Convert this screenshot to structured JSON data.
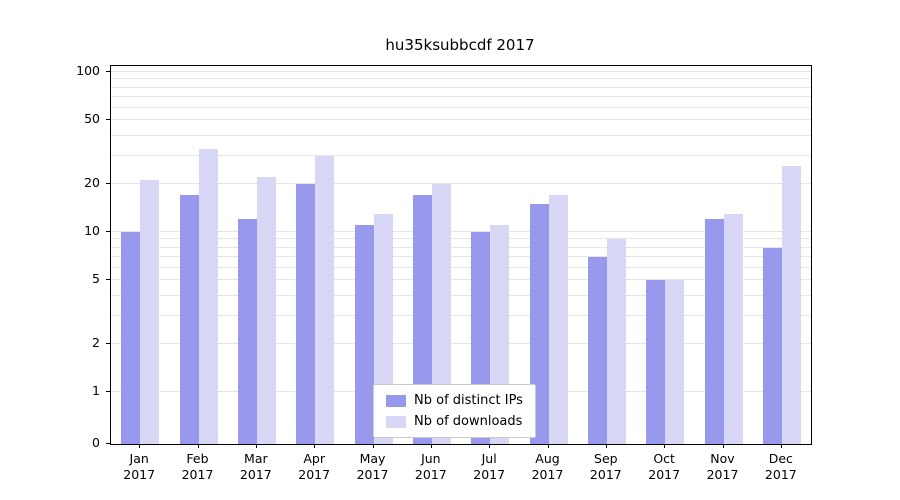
{
  "title": "hu35ksubbcdf 2017",
  "chart_data": {
    "type": "bar",
    "title": "hu35ksubbcdf 2017",
    "categories": [
      "Jan 2017",
      "Feb 2017",
      "Mar 2017",
      "Apr 2017",
      "May 2017",
      "Jun 2017",
      "Jul 2017",
      "Aug 2017",
      "Sep 2017",
      "Oct 2017",
      "Nov 2017",
      "Dec 2017"
    ],
    "series": [
      {
        "name": "Nb of distinct IPs",
        "color": "#9898ec",
        "values": [
          10,
          17,
          12,
          20,
          11,
          17,
          10,
          15,
          7,
          5,
          12,
          8
        ]
      },
      {
        "name": "Nb of downloads",
        "color": "#d8d8f6",
        "values": [
          21,
          33,
          22,
          30,
          13,
          20,
          11,
          17,
          9,
          5,
          13,
          26
        ]
      }
    ],
    "xlabel": "",
    "ylabel": "",
    "yscale": "symlog",
    "ylim": [
      0,
      110
    ],
    "yticks": [
      0,
      1,
      2,
      5,
      10,
      20,
      50,
      100
    ],
    "gridlines": [
      1,
      2,
      3,
      4,
      5,
      6,
      7,
      8,
      9,
      10,
      20,
      30,
      40,
      50,
      60,
      70,
      80,
      90,
      100
    ],
    "grid": true,
    "legend_position": "lower center"
  }
}
